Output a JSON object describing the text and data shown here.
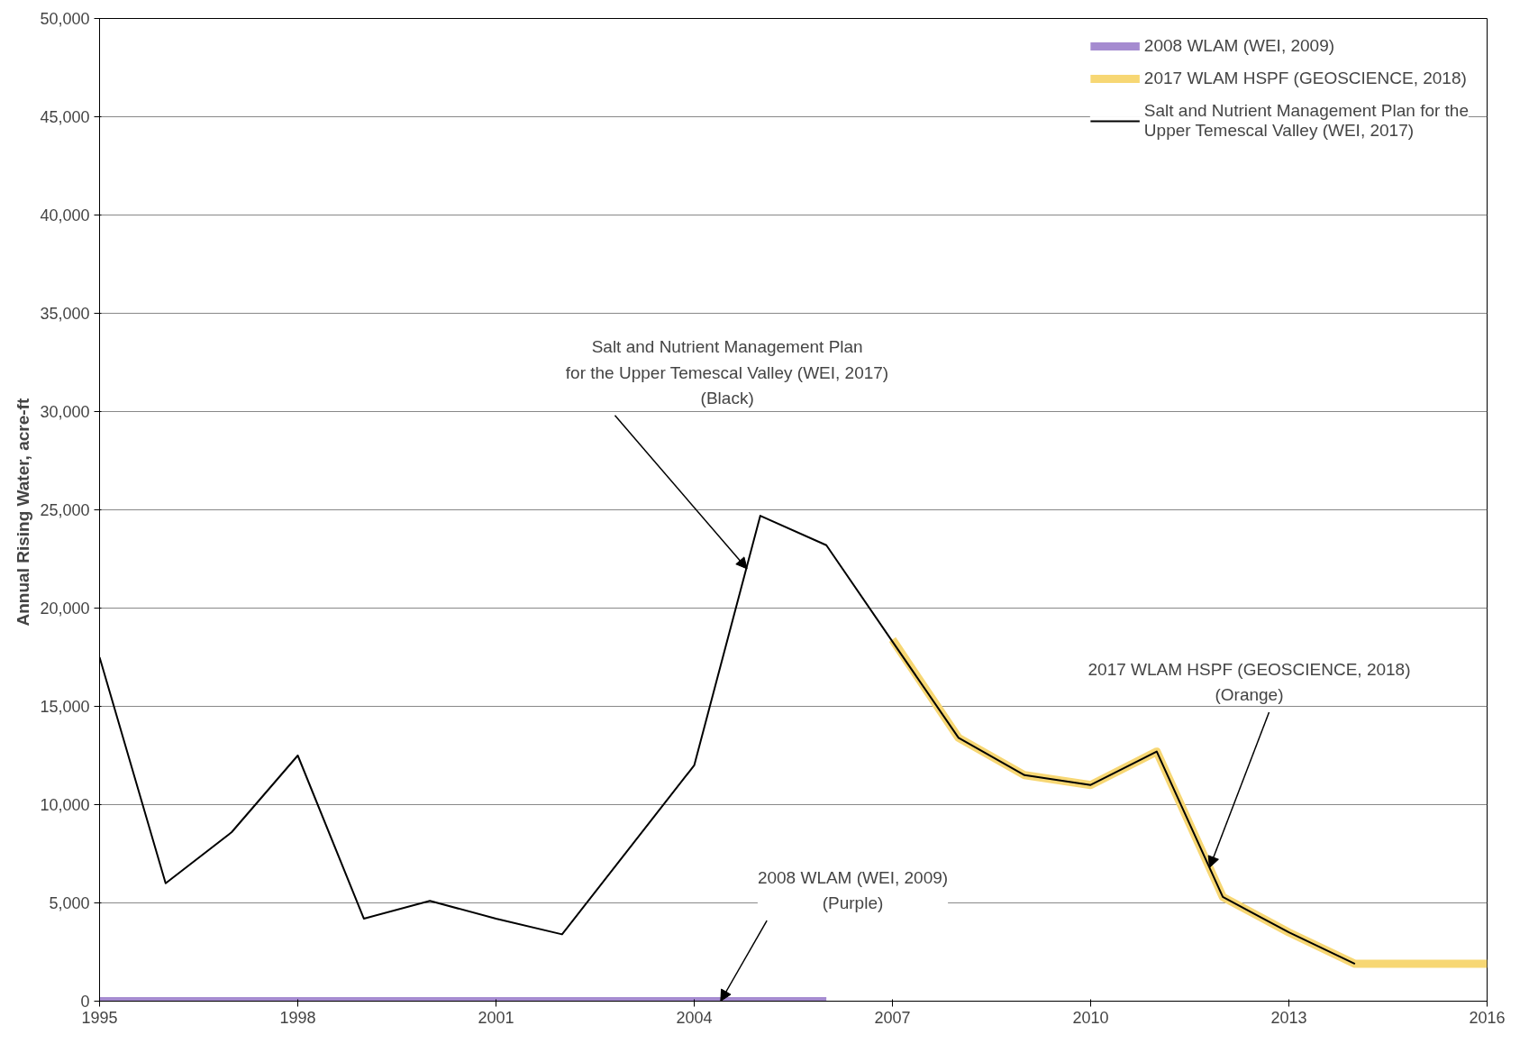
{
  "chart_data": {
    "type": "line",
    "ylabel": "Annual  Rising Water, acre-ft",
    "series": [
      {
        "name": "2008 WLAM (WEI, 2009)",
        "color": "#a58bd0",
        "x": [
          1995,
          1996,
          1997,
          1998,
          1999,
          2000,
          2001,
          2002,
          2003,
          2004,
          2005,
          2006
        ],
        "values": [
          0,
          0,
          0,
          0,
          0,
          0,
          0,
          0,
          0,
          0,
          0,
          0
        ]
      },
      {
        "name": "2017 WLAM HSPF (GEOSCIENCE, 2018)",
        "color": "#f7d774",
        "x": [
          2007,
          2008,
          2009,
          2010,
          2011,
          2012,
          2013,
          2014,
          2015,
          2016
        ],
        "values": [
          18400,
          13400,
          11500,
          11000,
          12700,
          5300,
          3500,
          1900,
          1900,
          1900
        ]
      },
      {
        "name": "Salt and Nutrient Management Plan for the\nUpper Temescal Valley (WEI, 2017)",
        "color": "#000000",
        "x": [
          1995,
          1996,
          1997,
          1998,
          1999,
          2000,
          2001,
          2002,
          2003,
          2004,
          2005,
          2006,
          2007,
          2008,
          2009,
          2010,
          2011,
          2012,
          2013,
          2014
        ],
        "values": [
          17500,
          6000,
          8600,
          12500,
          4200,
          5100,
          4200,
          3400,
          7700,
          12000,
          24700,
          23200,
          18300,
          13400,
          11500,
          11000,
          12700,
          5300,
          3500,
          1900
        ]
      }
    ],
    "xlim": [
      1995,
      2016
    ],
    "xticks": [
      1995,
      1998,
      2001,
      2004,
      2007,
      2010,
      2013,
      2016
    ],
    "ylim": [
      0,
      50000
    ],
    "yticks": [
      {
        "value": 0,
        "label": "0"
      },
      {
        "value": 5000,
        "label": "5,000"
      },
      {
        "value": 10000,
        "label": "10,000"
      },
      {
        "value": 15000,
        "label": "15,000"
      },
      {
        "value": 20000,
        "label": "20,000"
      },
      {
        "value": 25000,
        "label": "25,000"
      },
      {
        "value": 30000,
        "label": "30,000"
      },
      {
        "value": 35000,
        "label": "35,000"
      },
      {
        "value": 40000,
        "label": "40,000"
      },
      {
        "value": 45000,
        "label": "45,000"
      },
      {
        "value": 50000,
        "label": "50,000"
      }
    ],
    "grid": "y",
    "legend": "top right",
    "annotations": [
      {
        "text": "Salt and Nutrient Management Plan\nfor the Upper Temescal Valley (WEI, 2017)\n(Black)",
        "x": 2004.8,
        "y": 22000
      },
      {
        "text": "2017 WLAM HSPF (GEOSCIENCE, 2018)\n(Orange)",
        "x": 2011.8,
        "y": 6800
      },
      {
        "text": "2008 WLAM (WEI, 2009)\n(Purple)",
        "x": 2004.4,
        "y": 0
      }
    ]
  }
}
